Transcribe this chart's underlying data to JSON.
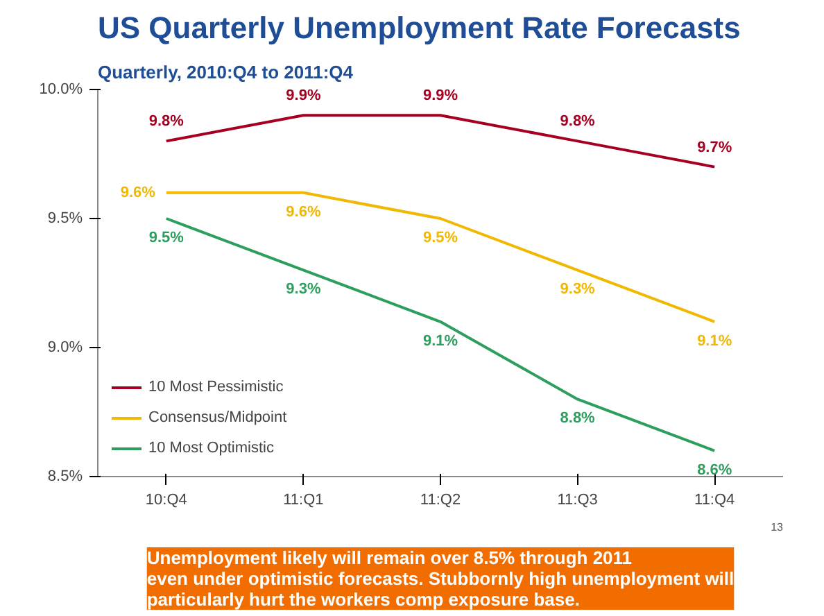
{
  "chart_data": {
    "type": "line",
    "title": "US Quarterly Unemployment Rate Forecasts",
    "subtitle": "Quarterly, 2010:Q4 to 2011:Q4",
    "categories": [
      "10:Q4",
      "11:Q1",
      "11:Q2",
      "11:Q3",
      "11:Q4"
    ],
    "series": [
      {
        "name": "10 Most Pessimistic",
        "color": "#a50021",
        "values": [
          9.8,
          9.9,
          9.9,
          9.8,
          9.7
        ],
        "value_labels": [
          "9.8%",
          "9.9%",
          "9.9%",
          "9.8%",
          "9.7%"
        ]
      },
      {
        "name": "Consensus/Midpoint",
        "color": "#f0b800",
        "values": [
          9.6,
          9.6,
          9.5,
          9.3,
          9.1
        ],
        "value_labels": [
          "9.6%",
          "9.6%",
          "9.5%",
          "9.3%",
          "9.1%"
        ]
      },
      {
        "name": "10 Most Optimistic",
        "color": "#2e9e5e",
        "values": [
          9.5,
          9.3,
          9.1,
          8.8,
          8.6
        ],
        "value_labels": [
          "9.5%",
          "9.3%",
          "9.1%",
          "8.8%",
          "8.6%"
        ]
      }
    ],
    "ylim": [
      8.5,
      10.0
    ],
    "yticks": [
      {
        "value": 8.5,
        "label": "8.5%"
      },
      {
        "value": 9.0,
        "label": "9.0%"
      },
      {
        "value": 9.5,
        "label": "9.5%"
      },
      {
        "value": 10.0,
        "label": "10.0%"
      }
    ],
    "legend": "bottom left",
    "grid": false,
    "marker": "none",
    "line_style": "solid",
    "annotations": [
      "Unemployment likely will remain over 8.5% through 2011\neven under optimistic forecasts. Stubbornly high unemployment will\nparticularly hurt the workers comp exposure base.",
      "13"
    ]
  }
}
